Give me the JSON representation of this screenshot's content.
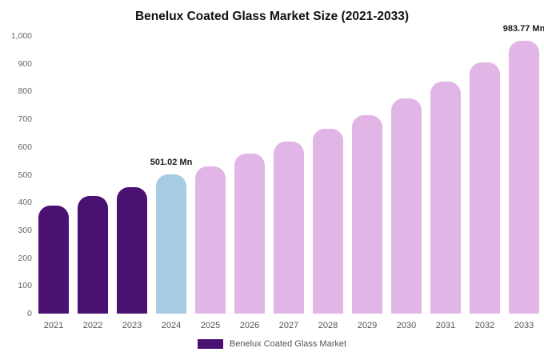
{
  "chart_data": {
    "type": "bar",
    "title": "Benelux Coated Glass Market Size (2021-2033)",
    "unit": "Mn",
    "categories": [
      "2021",
      "2022",
      "2023",
      "2024",
      "2025",
      "2026",
      "2027",
      "2028",
      "2029",
      "2030",
      "2031",
      "2032",
      "2033"
    ],
    "values": [
      390,
      425,
      455,
      501.02,
      530,
      575,
      620,
      665,
      715,
      775,
      835,
      905,
      983.77
    ],
    "bar_color_roles": [
      "historical",
      "historical",
      "historical",
      "highlight",
      "forecast",
      "forecast",
      "forecast",
      "forecast",
      "forecast",
      "forecast",
      "forecast",
      "forecast",
      "forecast"
    ],
    "palette": {
      "historical": "#4a1173",
      "highlight": "#a6cbe3",
      "forecast": "#e2b5e7"
    },
    "annotations": [
      {
        "category": "2024",
        "text": "501.02 Mn"
      },
      {
        "category": "2033",
        "text": "983.77 Mn"
      }
    ],
    "ylim": [
      0,
      1000
    ],
    "yticks": [
      "0",
      "100",
      "200",
      "300",
      "400",
      "500",
      "600",
      "700",
      "800",
      "900",
      "1,000"
    ],
    "grid": false,
    "legend_position": "bottom"
  },
  "legend": {
    "label": "Benelux Coated Glass Market",
    "swatch_color": "#4a1173"
  }
}
